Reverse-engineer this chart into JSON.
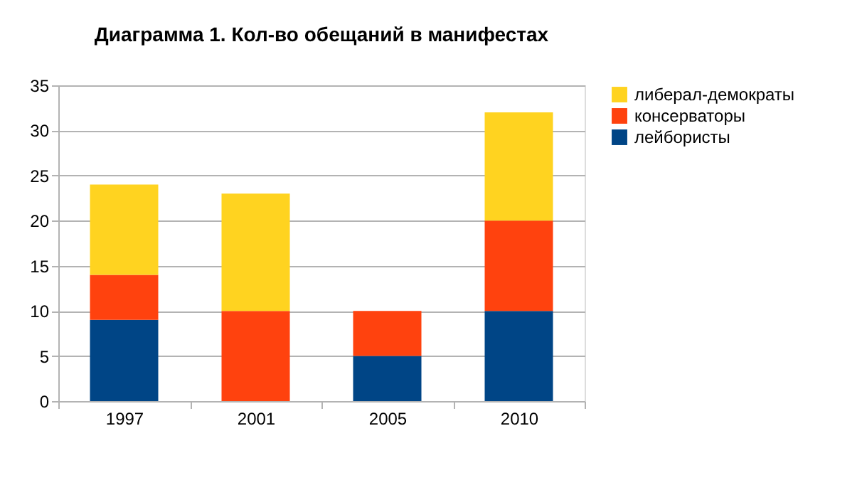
{
  "chart_data": {
    "type": "bar",
    "title": "Диаграмма 1. Кол-во обещаний в манифестах",
    "stacked": true,
    "categories": [
      "1997",
      "2001",
      "2005",
      "2010"
    ],
    "series": [
      {
        "name": "лейбористы",
        "color": "#004586",
        "values": [
          9,
          0,
          5,
          10
        ]
      },
      {
        "name": "консерваторы",
        "color": "#ff420e",
        "values": [
          5,
          10,
          5,
          10
        ]
      },
      {
        "name": "либерал-демократы",
        "color": "#ffd320",
        "values": [
          10,
          13,
          0,
          12
        ]
      }
    ],
    "ylim": [
      0,
      35
    ],
    "yticks": [
      0,
      5,
      10,
      15,
      20,
      25,
      30,
      35
    ],
    "grid": "y",
    "legend": "right"
  }
}
